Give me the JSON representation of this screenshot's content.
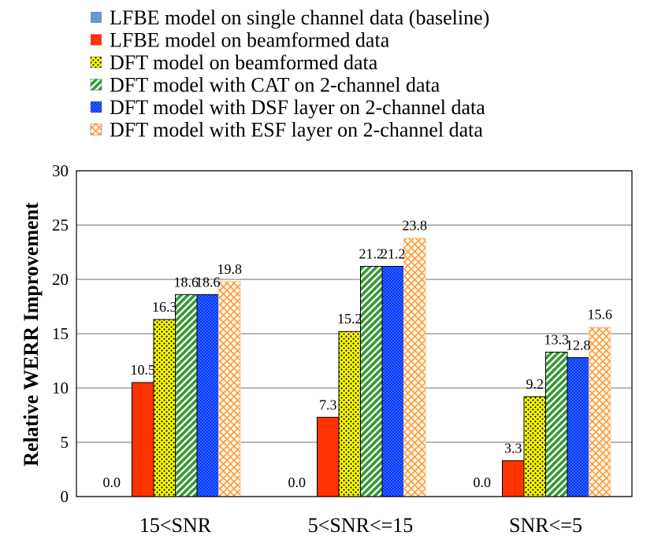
{
  "chart_data": {
    "type": "bar",
    "title": "",
    "xlabel": "",
    "ylabel": "Relative WERR Improvement",
    "ylim": [
      0,
      30
    ],
    "yticks": [
      0,
      5,
      10,
      15,
      20,
      25,
      30
    ],
    "grid": true,
    "legend_position": "top-left",
    "categories": [
      "15<SNR",
      "5<SNR<=15",
      "SNR<=5"
    ],
    "series": [
      {
        "name": "LFBE model on single channel data (baseline)",
        "values": [
          0.0,
          0.0,
          0.0
        ],
        "labels": [
          "0.0",
          "0.0",
          "0.0"
        ],
        "color": "#6699cc",
        "pattern": "solid"
      },
      {
        "name": "LFBE model on beamformed data",
        "values": [
          10.5,
          7.3,
          3.3
        ],
        "labels": [
          "10.5",
          "7.3",
          "3.3"
        ],
        "color": "#ff3300",
        "pattern": "solid"
      },
      {
        "name": "DFT model on beamformed data",
        "values": [
          16.3,
          15.2,
          9.2
        ],
        "labels": [
          "16.3",
          "15.2",
          "9.2"
        ],
        "color": "#ffff00",
        "pattern": "dots"
      },
      {
        "name": "DFT model with CAT on 2-channel data",
        "values": [
          18.6,
          21.2,
          13.3
        ],
        "labels": [
          "18.6",
          "21.2",
          "13.3"
        ],
        "color": "#339933",
        "pattern": "diagonal"
      },
      {
        "name": "DFT model with DSF layer on 2-channel data",
        "values": [
          18.6,
          21.2,
          12.8
        ],
        "labels": [
          "18.6",
          "21.2",
          "12.8"
        ],
        "color": "#0033ff",
        "pattern": "checker"
      },
      {
        "name": "DFT model with ESF layer on 2-channel data",
        "values": [
          19.8,
          23.8,
          15.6
        ],
        "labels": [
          "19.8",
          "23.8",
          "15.6"
        ],
        "color": "#ff9933",
        "pattern": "crosshatch"
      }
    ]
  }
}
